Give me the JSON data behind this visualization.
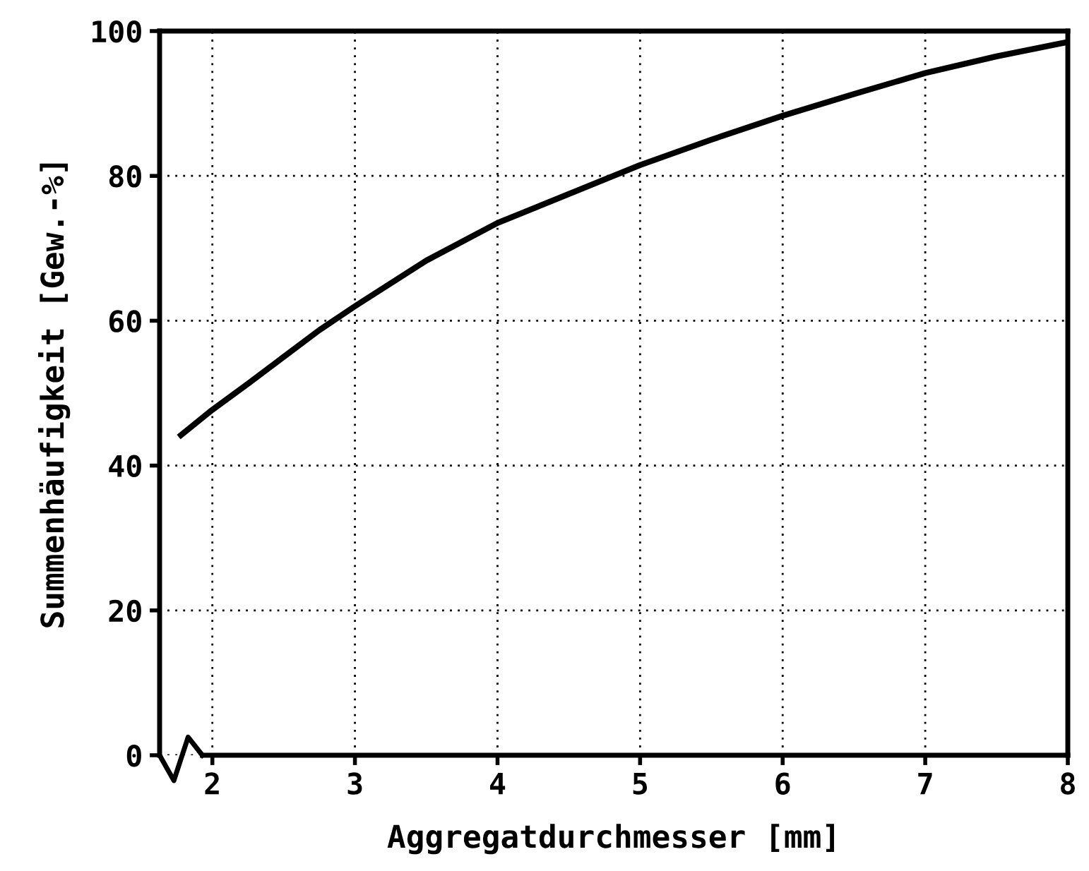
{
  "chart_data": {
    "type": "line",
    "xlabel": "Aggregatdurchmesser [mm]",
    "ylabel": "Summenhäufigkeit [Gew.-%]",
    "x": [
      1.78,
      2,
      2.25,
      2.5,
      2.75,
      3,
      3.5,
      4,
      4.5,
      5,
      5.5,
      6,
      6.5,
      7,
      7.5,
      8
    ],
    "series": [
      {
        "color": "#000000",
        "values": [
          44.2,
          47.7,
          51.3,
          55,
          58.7,
          62,
          68.3,
          73.5,
          77.5,
          81.5,
          85,
          88.3,
          91.3,
          94.2,
          96.5,
          98.5
        ]
      }
    ],
    "xlim": [
      1.63,
      8
    ],
    "xticks": [
      2,
      3,
      4,
      5,
      6,
      7,
      8
    ],
    "ylim": [
      0,
      100
    ],
    "yticks": [
      0,
      20,
      40,
      60,
      80,
      100
    ],
    "grid": true,
    "line_style": "solid",
    "marker": "none"
  }
}
